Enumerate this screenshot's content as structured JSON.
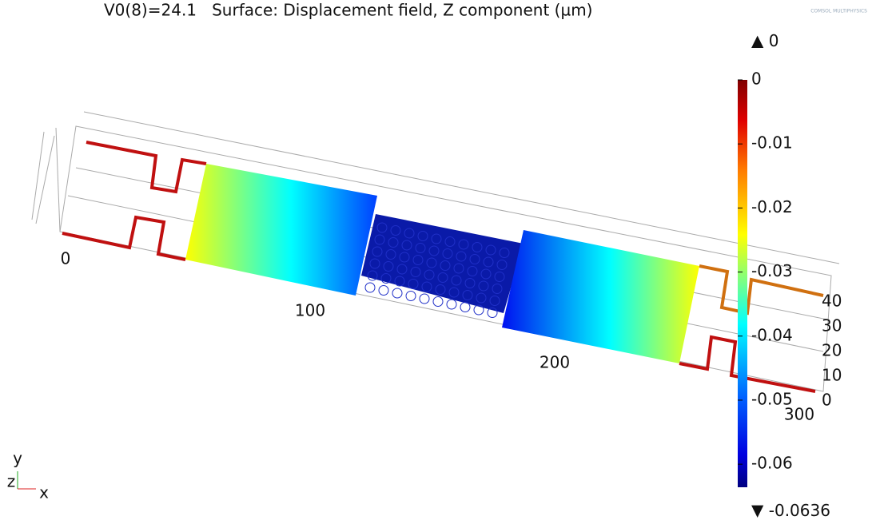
{
  "title": "V0(8)=24.1   Surface: Displacement field, Z component (µm)",
  "logo": "COMSOL MULTIPHYSICS",
  "colorbar": {
    "max": 0,
    "min": -0.0636,
    "ticks": [
      0,
      -0.01,
      -0.02,
      -0.03,
      -0.04,
      -0.05,
      -0.06
    ]
  },
  "x_axis": {
    "ticks": [
      0,
      100,
      200,
      300
    ]
  },
  "y_axis": {
    "ticks": [
      0,
      10,
      20,
      30,
      40
    ]
  },
  "triad": {
    "x": "x",
    "y": "y",
    "z": "z"
  }
}
